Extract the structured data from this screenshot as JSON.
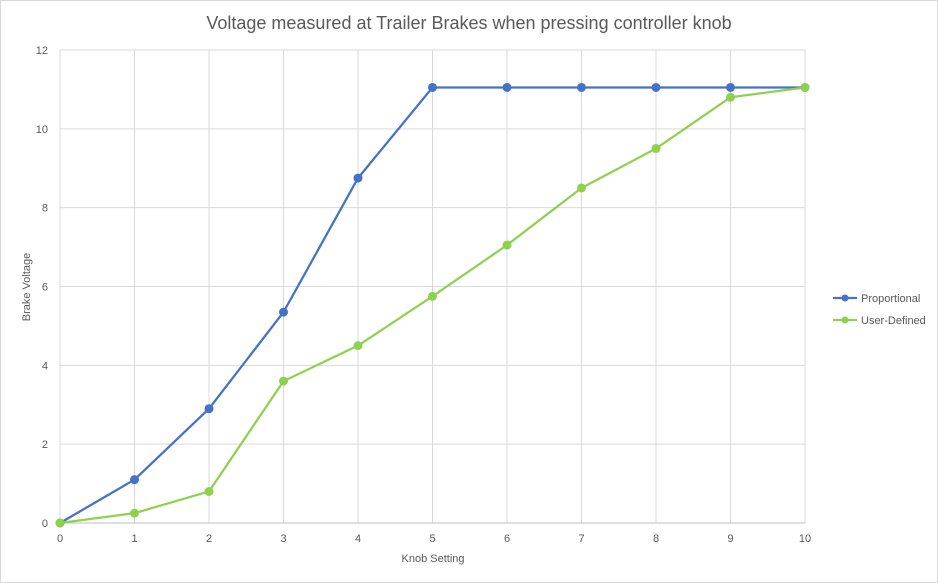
{
  "chart_data": {
    "type": "line",
    "title": "Voltage measured at Trailer Brakes when pressing controller knob",
    "xlabel": "Knob Setting",
    "ylabel": "Brake Voltage",
    "x": [
      0,
      1,
      2,
      3,
      4,
      5,
      6,
      7,
      8,
      9,
      10
    ],
    "xlim": [
      0,
      10
    ],
    "ylim": [
      0,
      12
    ],
    "x_ticks": [
      "0",
      "1",
      "2",
      "3",
      "4",
      "5",
      "6",
      "7",
      "8",
      "9",
      "10"
    ],
    "y_ticks": [
      "0",
      "2",
      "4",
      "6",
      "8",
      "10",
      "12"
    ],
    "grid": true,
    "legend_position": "right",
    "series": [
      {
        "name": "Proportional",
        "color": "#4472c4",
        "values": [
          0,
          1.1,
          2.9,
          5.35,
          8.75,
          11.05,
          11.05,
          11.05,
          11.05,
          11.05,
          11.05
        ]
      },
      {
        "name": "User-Defined",
        "color": "#8fd14f",
        "values": [
          0,
          0.25,
          0.8,
          3.6,
          4.5,
          5.75,
          7.05,
          8.5,
          9.5,
          10.8,
          11.05
        ]
      }
    ]
  }
}
